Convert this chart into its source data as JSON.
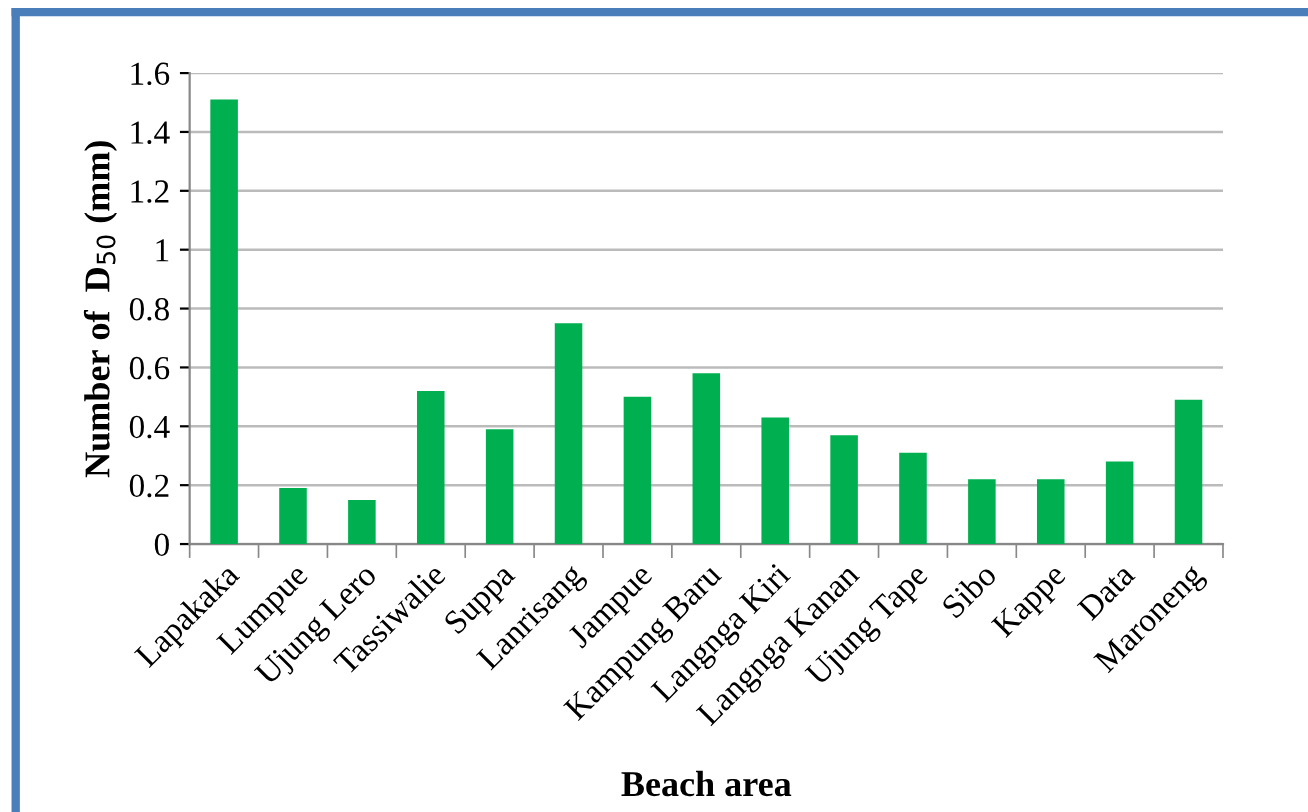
{
  "chart_data": {
    "type": "bar",
    "xlabel": "Beach area",
    "ylabel": "Number of  D$_{50}$ (mm)",
    "categories": [
      "Lapakaka",
      "Lumpue",
      "Ujung Lero",
      "Tassiwalie",
      "Suppa",
      "Lanrisang",
      "Jampue",
      "Kampung Baru",
      "Langnga Kiri",
      "Langnga Kanan",
      "Ujung Tape",
      "Sibo",
      "Kappe",
      "Data",
      "Maroneng"
    ],
    "values": [
      1.51,
      0.19,
      0.15,
      0.52,
      0.39,
      0.75,
      0.5,
      0.58,
      0.43,
      0.37,
      0.31,
      0.22,
      0.22,
      0.28,
      0.49
    ],
    "color": "#00b050",
    "ylim": [
      0,
      1.6
    ],
    "yticks": [
      0,
      0.2,
      0.4,
      0.6,
      0.8,
      1,
      1.2,
      1.4,
      1.6
    ],
    "grid": "y",
    "legend": false
  }
}
